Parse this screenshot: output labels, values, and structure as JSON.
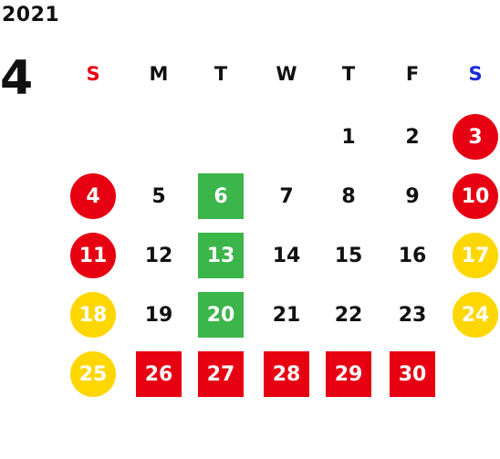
{
  "calendar": {
    "year": "2021",
    "month": "4",
    "weekdays": [
      "S",
      "M",
      "T",
      "W",
      "T",
      "F",
      "S"
    ],
    "weekday_colors": [
      "#e60012",
      "#111111",
      "#111111",
      "#111111",
      "#111111",
      "#111111",
      "#1a2ed6"
    ],
    "colors": {
      "red": "#e60012",
      "green": "#3cb54a",
      "yellow": "#ffd700",
      "text": "#111111"
    },
    "weeks": [
      [
        null,
        null,
        null,
        null,
        {
          "d": "1"
        },
        {
          "d": "2"
        },
        {
          "d": "3",
          "shape": "circle",
          "color": "red"
        }
      ],
      [
        {
          "d": "4",
          "shape": "circle",
          "color": "red"
        },
        {
          "d": "5"
        },
        {
          "d": "6",
          "shape": "square",
          "color": "green"
        },
        {
          "d": "7"
        },
        {
          "d": "8"
        },
        {
          "d": "9"
        },
        {
          "d": "10",
          "shape": "circle",
          "color": "red"
        }
      ],
      [
        {
          "d": "11",
          "shape": "circle",
          "color": "red"
        },
        {
          "d": "12"
        },
        {
          "d": "13",
          "shape": "square",
          "color": "green"
        },
        {
          "d": "14"
        },
        {
          "d": "15"
        },
        {
          "d": "16"
        },
        {
          "d": "17",
          "shape": "circle",
          "color": "yellow"
        }
      ],
      [
        {
          "d": "18",
          "shape": "circle",
          "color": "yellow"
        },
        {
          "d": "19"
        },
        {
          "d": "20",
          "shape": "square",
          "color": "green"
        },
        {
          "d": "21"
        },
        {
          "d": "22"
        },
        {
          "d": "23"
        },
        {
          "d": "24",
          "shape": "circle",
          "color": "yellow"
        }
      ],
      [
        {
          "d": "25",
          "shape": "circle",
          "color": "yellow"
        },
        {
          "d": "26",
          "shape": "square",
          "color": "red"
        },
        {
          "d": "27",
          "shape": "square",
          "color": "red"
        },
        {
          "d": "28",
          "shape": "square",
          "color": "red"
        },
        {
          "d": "29",
          "shape": "square",
          "color": "red"
        },
        {
          "d": "30",
          "shape": "square",
          "color": "red"
        },
        null
      ]
    ]
  }
}
